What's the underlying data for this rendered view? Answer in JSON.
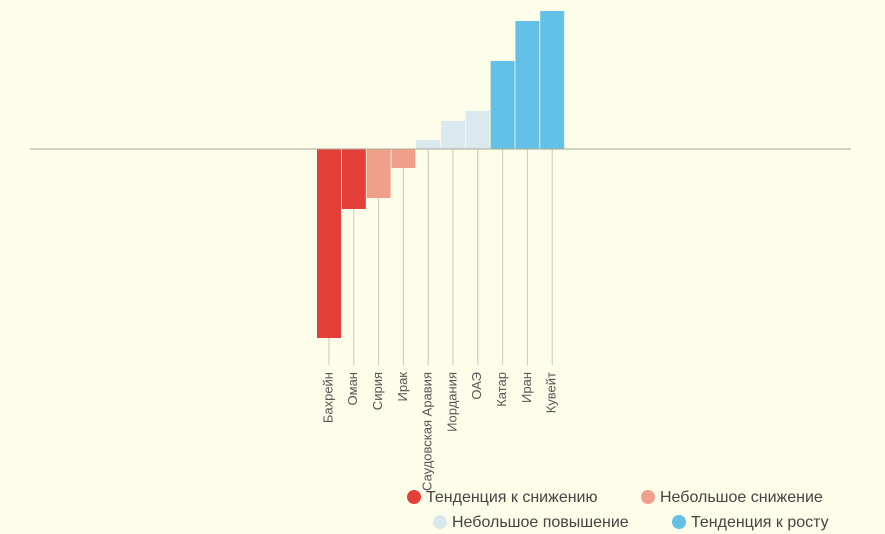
{
  "chart_data": {
    "type": "bar",
    "categories": [
      "Бахрейн",
      "Оман",
      "Сирия",
      "Ирак",
      "Саудовская Аравия",
      "Иордания",
      "ОАЭ",
      "Катар",
      "Иран",
      "Кувейт"
    ],
    "series": [
      {
        "name": "Тенденция к снижению",
        "color": "#e3403a",
        "values": [
          -189,
          -60,
          null,
          null,
          null,
          null,
          null,
          null,
          null,
          null
        ]
      },
      {
        "name": "Небольшое снижение",
        "color": "#f0a08a",
        "values": [
          null,
          null,
          -49,
          -19,
          null,
          null,
          null,
          null,
          null,
          null
        ]
      },
      {
        "name": "Небольшое повышение",
        "color": "#d9e9ee",
        "values": [
          null,
          null,
          null,
          null,
          9,
          28,
          38,
          null,
          null,
          null
        ]
      },
      {
        "name": "Тенденция к росту",
        "color": "#63c0e6",
        "values": [
          null,
          null,
          null,
          null,
          null,
          null,
          null,
          88,
          128,
          138
        ]
      }
    ],
    "ylim": [
      -200,
      149
    ]
  }
}
